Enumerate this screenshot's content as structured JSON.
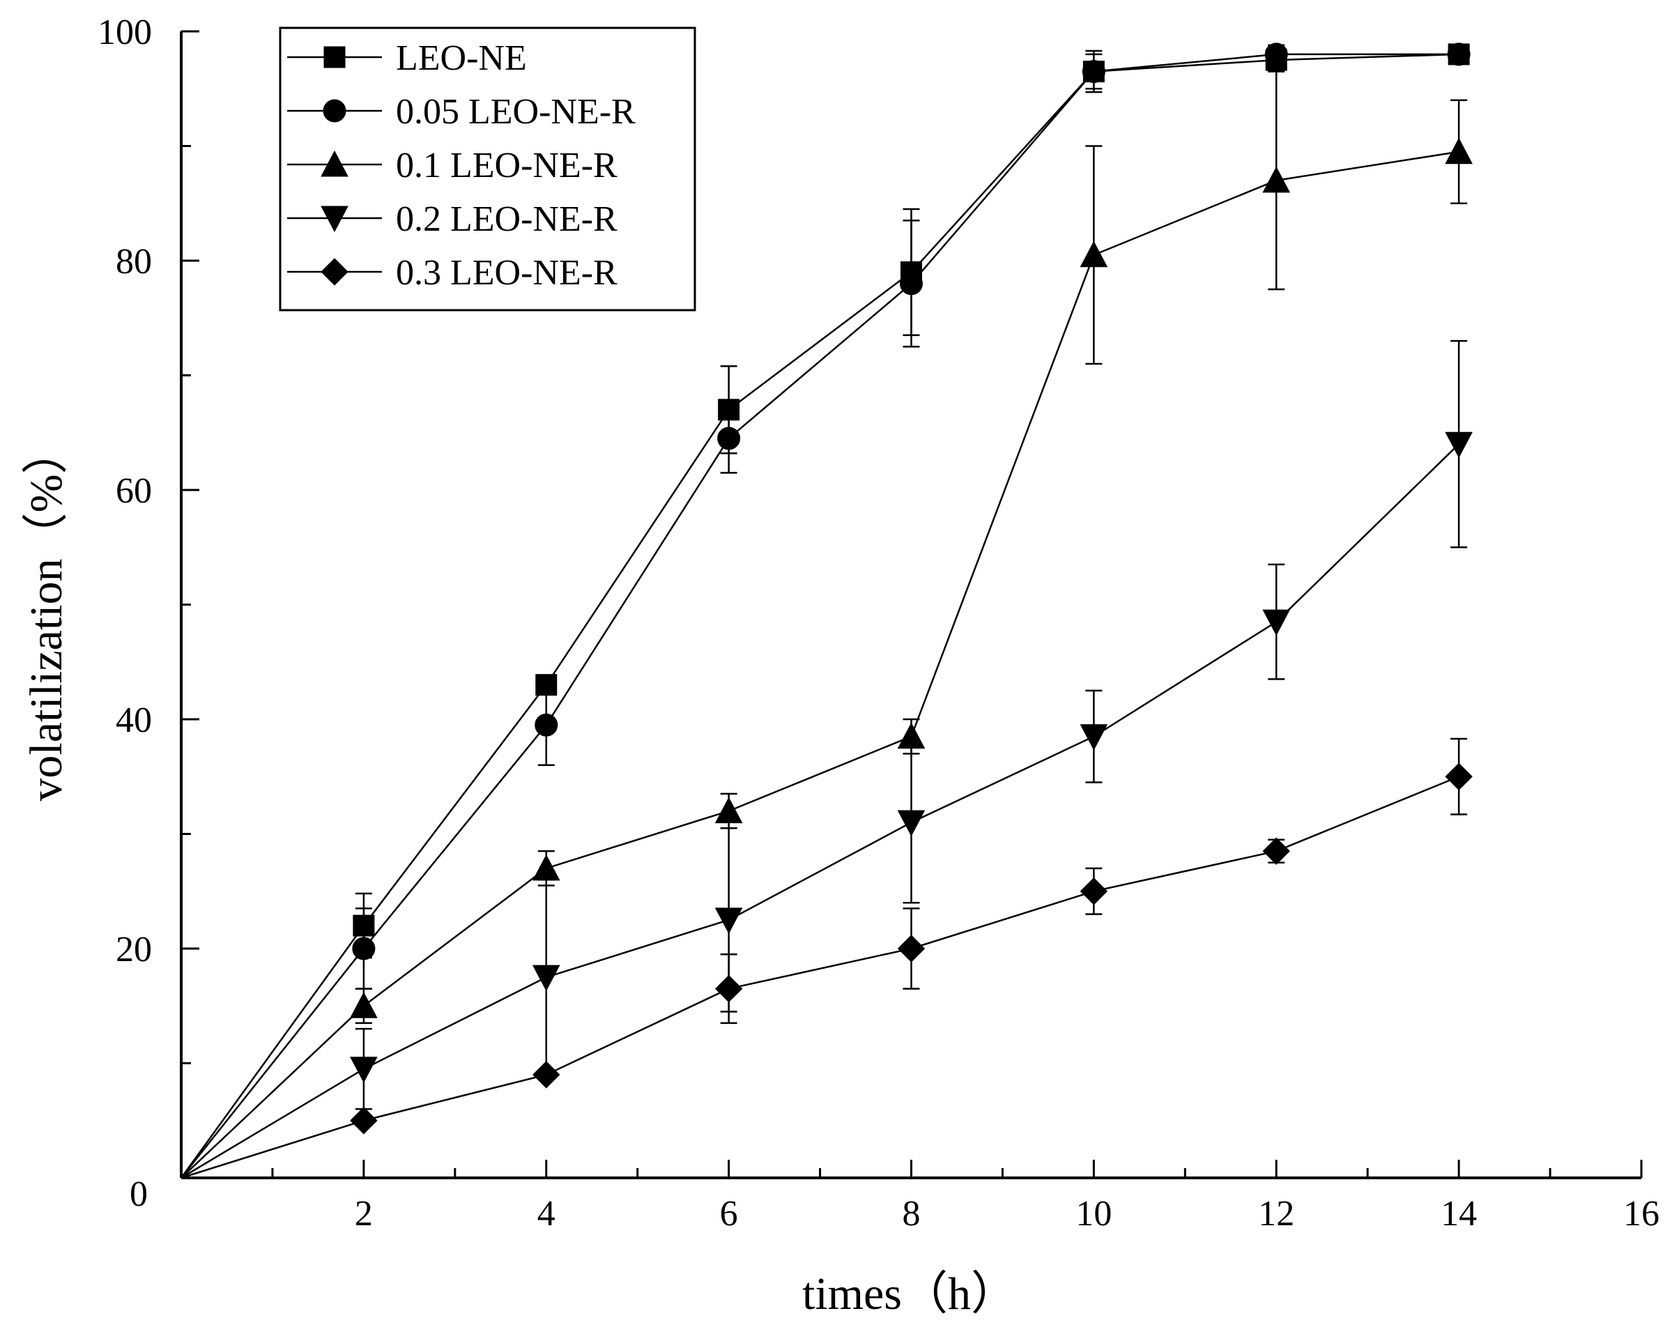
{
  "chart_data": {
    "type": "line",
    "xlabel": "times（h）",
    "ylabel": "volatilization（%）",
    "xlim": [
      0,
      16
    ],
    "ylim": [
      0,
      100
    ],
    "x_ticks": [
      2,
      4,
      6,
      8,
      10,
      12,
      14,
      16
    ],
    "y_ticks": [
      0,
      20,
      40,
      60,
      80,
      100
    ],
    "legend_position": "top-left",
    "grid": false,
    "x": [
      0,
      2,
      4,
      6,
      8,
      10,
      12,
      14
    ],
    "series": [
      {
        "name": "LEO-NE",
        "marker": "square",
        "values": [
          0,
          22,
          43,
          67,
          79,
          96.5,
          97.5,
          98
        ],
        "errors": [
          0,
          2.8,
          0,
          3.8,
          5.5,
          1.8,
          0.8,
          0.5
        ]
      },
      {
        "name": "0.05 LEO-NE-R",
        "marker": "circle",
        "values": [
          0,
          20,
          39.5,
          64.5,
          78,
          96.5,
          98,
          98
        ],
        "errors": [
          0,
          3.5,
          3.5,
          3,
          5.5,
          1.5,
          0.8,
          0.5
        ]
      },
      {
        "name": "0.1 LEO-NE-R",
        "marker": "triangle-up",
        "values": [
          0,
          15,
          27,
          32,
          38.5,
          80.5,
          87,
          89.5
        ],
        "errors": [
          0,
          1.5,
          1.5,
          1.5,
          1.5,
          9.5,
          9.5,
          4.5
        ]
      },
      {
        "name": "0.2 LEO-NE-R",
        "marker": "triangle-down",
        "values": [
          0,
          9.5,
          17.5,
          22.5,
          31,
          38.5,
          48.5,
          64
        ],
        "errors": [
          0,
          3.5,
          8.5,
          8,
          7,
          4,
          5,
          9
        ]
      },
      {
        "name": "0.3 LEO-NE-R",
        "marker": "diamond",
        "values": [
          0,
          5,
          9,
          16.5,
          20,
          25,
          28.5,
          35
        ],
        "errors": [
          0,
          0,
          0,
          3,
          3.5,
          2,
          1,
          3.3
        ]
      }
    ]
  }
}
